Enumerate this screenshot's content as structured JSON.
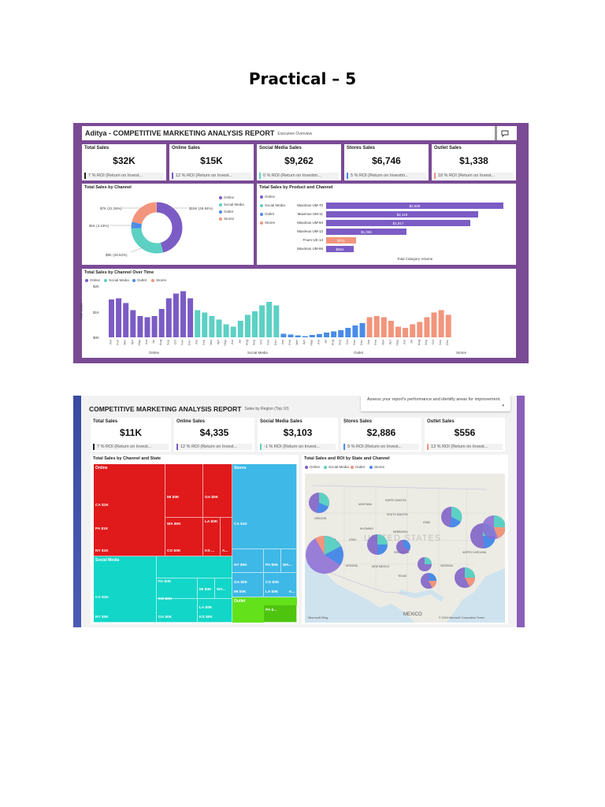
{
  "document": {
    "title": "Practical – 5"
  },
  "dashboard1": {
    "header": {
      "title": "Aditya - COMPETITIVE MARKETING ANALYSIS REPORT",
      "subtitle": "Executive Overview"
    },
    "kpis": [
      {
        "label": "Total Sales",
        "value": "$32K",
        "roi": "7 % ROI (Return on Invest...",
        "color": "#222222"
      },
      {
        "label": "Online Sales",
        "value": "$15K",
        "roi": "12 % ROI (Return on Invest...",
        "color": "#7b5cc5"
      },
      {
        "label": "Social Media Sales",
        "value": "$9,262",
        "roi": "0 % ROI (Return on Investm...",
        "color": "#5dd0c4"
      },
      {
        "label": "Stores Sales",
        "value": "$6,746",
        "roi": "5 % ROI (Return on Investm...",
        "color": "#4a8be8"
      },
      {
        "label": "Outlet Sales",
        "value": "$1,338",
        "roi": "18 % ROI (Return on Invest...",
        "color": "#f2957c"
      }
    ],
    "donut": {
      "title": "Total Sales by Channel",
      "legend": [
        "Online",
        "Social Media",
        "Outlet",
        "Stores"
      ],
      "labels": {
        "online": "$15K (45.84%)",
        "social": "$9K (28.62%)",
        "outlet": "$1K (4.18%)",
        "stores": "$7K (21.06%)"
      }
    },
    "product_bars": {
      "title": "Total Sales by Product and Channel",
      "legend": [
        "Online",
        "Social Media",
        "Outlet",
        "Stores"
      ],
      "xlabel": "Total Category Volume"
    },
    "time_chart": {
      "title": "Total Sales by Channel Over Time",
      "legend": [
        "Online",
        "Social Media",
        "Outlet",
        "Stores"
      ],
      "ylabel": "Total Sales",
      "yticks": [
        "$2K",
        "$1K",
        "$0K"
      ],
      "groups": [
        "Online",
        "Social Media",
        "Outlet",
        "Stores"
      ]
    }
  },
  "dashboard2": {
    "header": {
      "title": "COMPETITIVE MARKETING ANALYSIS REPORT",
      "subtitle": "Sales by Region (Top 10)"
    },
    "tooltip": "Assess your report's performance and identify areas for improvement.",
    "kpis": [
      {
        "label": "Total Sales",
        "value": "$11K",
        "roi": "7 % ROI (Return on Invest...",
        "color": "#222222"
      },
      {
        "label": "Online Sales",
        "value": "$4,335",
        "roi": "12 % ROI (Return on Invest...",
        "color": "#7b5cc5"
      },
      {
        "label": "Social Media Sales",
        "value": "$3,103",
        "roi": "-1 % ROI (Return on Invest...",
        "color": "#5dd0c4"
      },
      {
        "label": "Stores Sales",
        "value": "$2,886",
        "roi": "9 % ROI (Return on Invest...",
        "color": "#4a8be8"
      },
      {
        "label": "Outlet Sales",
        "value": "$556",
        "roi": "13 % ROI (Return on Invest...",
        "color": "#f2957c"
      }
    ],
    "treemap": {
      "title": "Total Sales by Channel and State",
      "online": {
        "label": "Online",
        "cells": [
          "CA $1K",
          "PA $1K",
          "NY $1K",
          "MI $0K",
          "GA $0K",
          "WA $0K",
          "LA $0K",
          "CO $0K",
          "KS ...",
          "A..."
        ]
      },
      "social": {
        "label": "Social Media",
        "cells": [
          "CA $1K",
          "NY $0K",
          "PA $0K",
          "CO $0K",
          "MI $0K",
          "WA...",
          "LA $0K",
          "GA $0K",
          "KS $0K"
        ]
      },
      "stores": {
        "label": "Stores",
        "cells": [
          "CA $1K",
          "NY $0K",
          "PA $0K",
          "WA...",
          "GA $0K",
          "CO $0K",
          "MI $0K",
          "LA $0K",
          "K..."
        ]
      },
      "outlet": {
        "label": "Outlet",
        "cells": [
          "PA $..."
        ]
      }
    },
    "map": {
      "title": "Total Sales and ROI by State and Channel",
      "legend": [
        "Online",
        "Social Media",
        "Outlet",
        "Stores"
      ],
      "watermark": "UNITED STATES",
      "country_mexico": "MEXICO",
      "credit": "© 2024 Microsoft Corporation  Terms",
      "brand": "Microsoft Bing"
    }
  }
}
